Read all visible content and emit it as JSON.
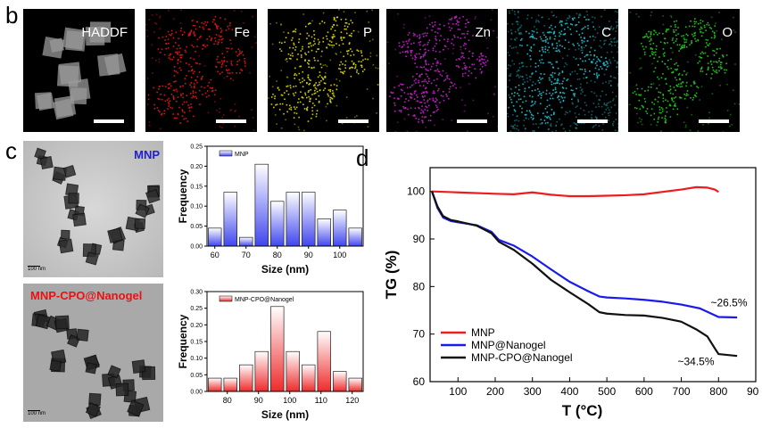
{
  "panel_b": {
    "letter": "b",
    "maps": [
      {
        "label": "HADDF",
        "color": "#ffffff",
        "bg": "#000000"
      },
      {
        "label": "Fe",
        "color": "#e01515",
        "bg": "#000000"
      },
      {
        "label": "P",
        "color": "#d6d200",
        "bg": "#000000"
      },
      {
        "label": "Zn",
        "color": "#c21ec8",
        "bg": "#000000"
      },
      {
        "label": "C",
        "color": "#1fb8c6",
        "bg": "#000000"
      },
      {
        "label": "O",
        "color": "#22c41e",
        "bg": "#000000"
      }
    ]
  },
  "panel_c": {
    "letter": "c",
    "tem_top_label": "MNP",
    "tem_bottom_label": "MNP-CPO@Nanogel",
    "tem_scale_text": "100 nm"
  },
  "panel_d": {
    "letter": "d"
  },
  "chart_data": [
    {
      "type": "bar",
      "legend": "MNP",
      "categories": [
        60,
        65,
        70,
        75,
        80,
        85,
        90,
        95,
        100,
        105
      ],
      "values": [
        0.045,
        0.135,
        0.022,
        0.205,
        0.112,
        0.135,
        0.135,
        0.068,
        0.09,
        0.045
      ],
      "xlabel": "Size (nm)",
      "ylabel": "Frequency",
      "xticks": [
        60,
        70,
        80,
        90,
        100
      ],
      "yticks": [
        "0.00",
        "0.05",
        "0.10",
        "0.15",
        "0.20",
        "0.25"
      ],
      "xlim": [
        57.5,
        107.5
      ],
      "ylim": [
        0,
        0.25
      ],
      "color": "#3f46ee"
    },
    {
      "type": "bar",
      "legend": "MNP-CPO@Nanogel",
      "categories": [
        76,
        81,
        86,
        91,
        96,
        101,
        106,
        111,
        116,
        121
      ],
      "values": [
        0.04,
        0.04,
        0.08,
        0.12,
        0.255,
        0.12,
        0.08,
        0.18,
        0.06,
        0.04
      ],
      "xlabel": "Size (nm)",
      "ylabel": "Frequency",
      "xticks": [
        80,
        90,
        100,
        110,
        120
      ],
      "yticks": [
        "0.00",
        "0.05",
        "0.10",
        "0.15",
        "0.20",
        "0.25",
        "0.30"
      ],
      "xlim": [
        73.5,
        123.5
      ],
      "ylim": [
        0,
        0.3
      ],
      "color": "#ee2a2a"
    },
    {
      "type": "line",
      "xlabel": "T (°C)",
      "ylabel": "TG (%)",
      "xlim": [
        25,
        900
      ],
      "ylim": [
        60,
        105
      ],
      "xticks": [
        100,
        200,
        300,
        400,
        500,
        600,
        700,
        800,
        900
      ],
      "yticks": [
        60,
        70,
        80,
        90,
        100
      ],
      "series": [
        {
          "name": "MNP",
          "color": "#ee1c1c",
          "x": [
            30,
            100,
            200,
            250,
            300,
            350,
            400,
            450,
            500,
            550,
            600,
            650,
            700,
            740,
            770,
            790,
            800
          ],
          "y": [
            100,
            99.8,
            99.5,
            99.4,
            99.8,
            99.3,
            99.0,
            99.0,
            99.1,
            99.2,
            99.4,
            99.9,
            100.4,
            100.9,
            100.8,
            100.4,
            99.9
          ]
        },
        {
          "name": "MNP@Nanogel",
          "color": "#1a1aee",
          "x": [
            30,
            45,
            60,
            80,
            100,
            150,
            190,
            210,
            250,
            300,
            350,
            400,
            450,
            480,
            500,
            550,
            600,
            650,
            700,
            750,
            800,
            850
          ],
          "y": [
            100,
            96.5,
            94.5,
            93.8,
            93.5,
            92.9,
            91.5,
            89.8,
            88.6,
            86.3,
            83.6,
            81.0,
            79.0,
            77.9,
            77.7,
            77.5,
            77.2,
            76.8,
            76.2,
            75.4,
            73.6,
            73.5
          ]
        },
        {
          "name": "MNP-CPO@Nanogel",
          "color": "#111111",
          "x": [
            30,
            45,
            60,
            80,
            100,
            150,
            190,
            210,
            250,
            300,
            350,
            400,
            450,
            480,
            500,
            550,
            600,
            650,
            700,
            740,
            770,
            790,
            800,
            850
          ],
          "y": [
            100,
            96.8,
            94.8,
            94.0,
            93.7,
            92.8,
            91.2,
            89.4,
            87.7,
            84.8,
            81.4,
            78.8,
            76.3,
            74.6,
            74.3,
            74.0,
            73.9,
            73.4,
            72.6,
            71.0,
            69.5,
            67.0,
            65.8,
            65.4
          ]
        }
      ],
      "annotations": [
        "~26.5%",
        "~34.5%"
      ]
    }
  ]
}
